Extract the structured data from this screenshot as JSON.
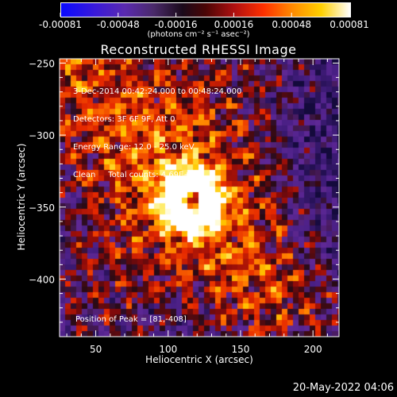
{
  "colorbar": {
    "tick_labels": [
      "-0.00081",
      "-0.00048",
      "-0.00016",
      "0.00016",
      "0.00048",
      "0.00081"
    ],
    "units": "(photons cm⁻² s⁻¹ asec⁻²)",
    "range": [
      -0.00081,
      0.00081
    ]
  },
  "chart_data": {
    "type": "heatmap",
    "title": "Reconstructed RHESSI Image",
    "xlabel": "Heliocentric X (arcsec)",
    "ylabel": "Heliocentric Y (arcsec)",
    "xlim": [
      25,
      218
    ],
    "ylim": [
      -440,
      -247
    ],
    "x_ticks": [
      50,
      100,
      150,
      200
    ],
    "y_ticks": [
      -250,
      -300,
      -350,
      -400
    ],
    "x_tick_labels": [
      "50",
      "100",
      "150",
      "200"
    ],
    "y_tick_labels": [
      "−250",
      "−300",
      "−350",
      "−400"
    ],
    "annotations": [
      "3-Dec-2014 00:42:24.000 to 00:48:24.000",
      "Detectors: 3F 6F 9F, Att 0",
      "Energy Range: 12.0 - 25.0 keV",
      "Clean     Total counts: 4.69E+03"
    ],
    "peak_label": "Position of Peak = [81,-408]",
    "colormap": "blue-purple-red-yellow-white (RHESSI)"
  },
  "footer": {
    "timestamp": "20-May-2022 04:06"
  }
}
